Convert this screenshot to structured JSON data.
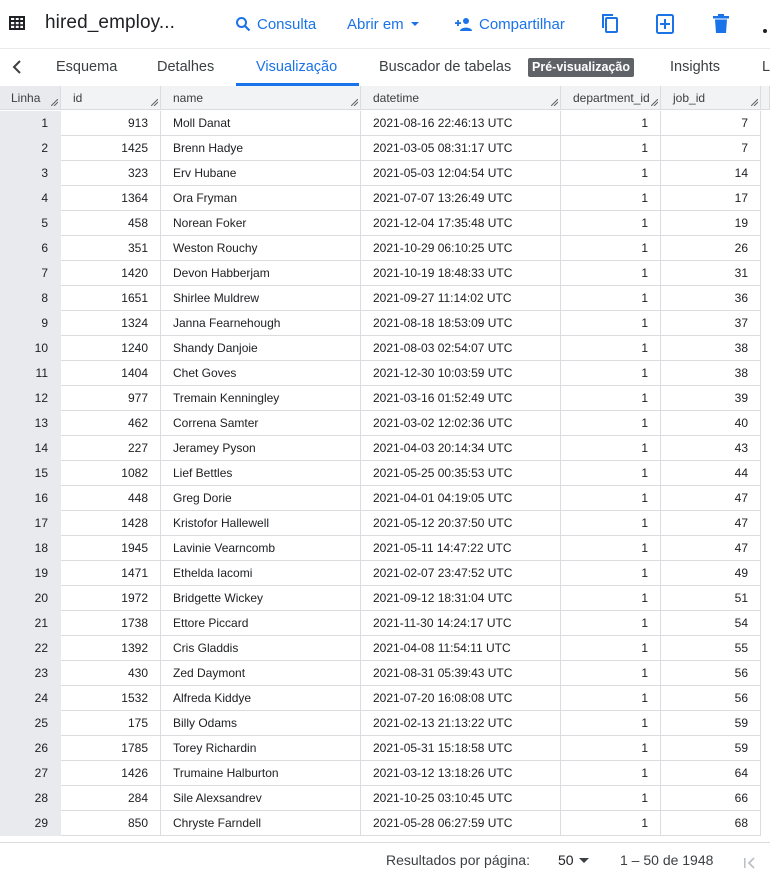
{
  "toolbar": {
    "title": "hired_employ...",
    "query_label": "Consulta",
    "open_label": "Abrir em",
    "share_label": "Compartilhar",
    "accent_color": "#1a73e8"
  },
  "tabs": {
    "items": [
      {
        "label": "Esquema"
      },
      {
        "label": "Detalhes"
      },
      {
        "label": "Visualização"
      },
      {
        "label": "Buscador de tabelas"
      },
      {
        "label": "Pré-visualização"
      },
      {
        "label": "Insights"
      },
      {
        "label": "L"
      }
    ],
    "active": "Visualização"
  },
  "grid": {
    "headers": [
      "Linha",
      "id",
      "name",
      "datetime",
      "department_id",
      "job_id"
    ],
    "rows": [
      {
        "linha": "1",
        "id": "913",
        "name": "Moll Danat",
        "datetime": "2021-08-16 22:46:13 UTC",
        "department_id": "1",
        "job_id": "7"
      },
      {
        "linha": "2",
        "id": "1425",
        "name": "Brenn Hadye",
        "datetime": "2021-03-05 08:31:17 UTC",
        "department_id": "1",
        "job_id": "7"
      },
      {
        "linha": "3",
        "id": "323",
        "name": "Erv Hubane",
        "datetime": "2021-05-03 12:04:54 UTC",
        "department_id": "1",
        "job_id": "14"
      },
      {
        "linha": "4",
        "id": "1364",
        "name": "Ora Fryman",
        "datetime": "2021-07-07 13:26:49 UTC",
        "department_id": "1",
        "job_id": "17"
      },
      {
        "linha": "5",
        "id": "458",
        "name": "Norean Foker",
        "datetime": "2021-12-04 17:35:48 UTC",
        "department_id": "1",
        "job_id": "19"
      },
      {
        "linha": "6",
        "id": "351",
        "name": "Weston Rouchy",
        "datetime": "2021-10-29 06:10:25 UTC",
        "department_id": "1",
        "job_id": "26"
      },
      {
        "linha": "7",
        "id": "1420",
        "name": "Devon Habberjam",
        "datetime": "2021-10-19 18:48:33 UTC",
        "department_id": "1",
        "job_id": "31"
      },
      {
        "linha": "8",
        "id": "1651",
        "name": "Shirlee Muldrew",
        "datetime": "2021-09-27 11:14:02 UTC",
        "department_id": "1",
        "job_id": "36"
      },
      {
        "linha": "9",
        "id": "1324",
        "name": "Janna Fearnehough",
        "datetime": "2021-08-18 18:53:09 UTC",
        "department_id": "1",
        "job_id": "37"
      },
      {
        "linha": "10",
        "id": "1240",
        "name": "Shandy Danjoie",
        "datetime": "2021-08-03 02:54:07 UTC",
        "department_id": "1",
        "job_id": "38"
      },
      {
        "linha": "11",
        "id": "1404",
        "name": "Chet Goves",
        "datetime": "2021-12-30 10:03:59 UTC",
        "department_id": "1",
        "job_id": "38"
      },
      {
        "linha": "12",
        "id": "977",
        "name": "Tremain Kenningley",
        "datetime": "2021-03-16 01:52:49 UTC",
        "department_id": "1",
        "job_id": "39"
      },
      {
        "linha": "13",
        "id": "462",
        "name": "Correna Samter",
        "datetime": "2021-03-02 12:02:36 UTC",
        "department_id": "1",
        "job_id": "40"
      },
      {
        "linha": "14",
        "id": "227",
        "name": "Jeramey Pyson",
        "datetime": "2021-04-03 20:14:34 UTC",
        "department_id": "1",
        "job_id": "43"
      },
      {
        "linha": "15",
        "id": "1082",
        "name": "Lief Bettles",
        "datetime": "2021-05-25 00:35:53 UTC",
        "department_id": "1",
        "job_id": "44"
      },
      {
        "linha": "16",
        "id": "448",
        "name": "Greg Dorie",
        "datetime": "2021-04-01 04:19:05 UTC",
        "department_id": "1",
        "job_id": "47"
      },
      {
        "linha": "17",
        "id": "1428",
        "name": "Kristofor Hallewell",
        "datetime": "2021-05-12 20:37:50 UTC",
        "department_id": "1",
        "job_id": "47"
      },
      {
        "linha": "18",
        "id": "1945",
        "name": "Lavinie Vearncomb",
        "datetime": "2021-05-11 14:47:22 UTC",
        "department_id": "1",
        "job_id": "47"
      },
      {
        "linha": "19",
        "id": "1471",
        "name": "Ethelda Iacomi",
        "datetime": "2021-02-07 23:47:52 UTC",
        "department_id": "1",
        "job_id": "49"
      },
      {
        "linha": "20",
        "id": "1972",
        "name": "Bridgette Wickey",
        "datetime": "2021-09-12 18:31:04 UTC",
        "department_id": "1",
        "job_id": "51"
      },
      {
        "linha": "21",
        "id": "1738",
        "name": "Ettore Piccard",
        "datetime": "2021-11-30 14:24:17 UTC",
        "department_id": "1",
        "job_id": "54"
      },
      {
        "linha": "22",
        "id": "1392",
        "name": "Cris Gladdis",
        "datetime": "2021-04-08 11:54:11 UTC",
        "department_id": "1",
        "job_id": "55"
      },
      {
        "linha": "23",
        "id": "430",
        "name": "Zed Daymont",
        "datetime": "2021-08-31 05:39:43 UTC",
        "department_id": "1",
        "job_id": "56"
      },
      {
        "linha": "24",
        "id": "1532",
        "name": "Alfreda Kiddye",
        "datetime": "2021-07-20 16:08:08 UTC",
        "department_id": "1",
        "job_id": "56"
      },
      {
        "linha": "25",
        "id": "175",
        "name": "Billy Odams",
        "datetime": "2021-02-13 21:13:22 UTC",
        "department_id": "1",
        "job_id": "59"
      },
      {
        "linha": "26",
        "id": "1785",
        "name": "Torey Richardin",
        "datetime": "2021-05-31 15:18:58 UTC",
        "department_id": "1",
        "job_id": "59"
      },
      {
        "linha": "27",
        "id": "1426",
        "name": "Trumaine Halburton",
        "datetime": "2021-03-12 13:18:26 UTC",
        "department_id": "1",
        "job_id": "64"
      },
      {
        "linha": "28",
        "id": "284",
        "name": "Sile Alexsandrev",
        "datetime": "2021-10-25 03:10:45 UTC",
        "department_id": "1",
        "job_id": "66"
      },
      {
        "linha": "29",
        "id": "850",
        "name": "Chryste Farndell",
        "datetime": "2021-05-28 06:27:59 UTC",
        "department_id": "1",
        "job_id": "68"
      }
    ]
  },
  "footer": {
    "per_page_label": "Resultados por página:",
    "per_page_value": "50",
    "range_text": "1 – 50 de 1948"
  }
}
